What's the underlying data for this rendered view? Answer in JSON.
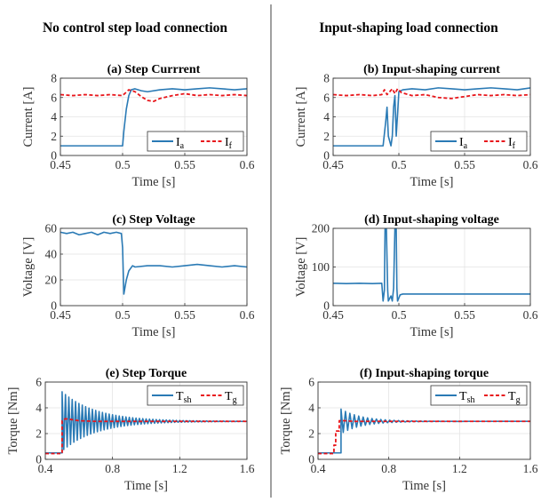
{
  "figure": {
    "left_heading": "No control step load connection",
    "right_heading": "Input-shaping load connection"
  },
  "colors": {
    "series_a": "#2a7ab5",
    "series_f": "#e8161b"
  },
  "chart_data": [
    {
      "id": "a",
      "type": "line",
      "title": "(a) Step Currrent",
      "xlabel": "Time [s]",
      "ylabel": "Current [A]",
      "xlim": [
        0.45,
        0.6
      ],
      "ylim": [
        0,
        8
      ],
      "xticks": [
        0.45,
        0.5,
        0.55,
        0.6
      ],
      "xticklabels": [
        "0.45",
        "0.5",
        "0.55",
        "0.6"
      ],
      "yticks": [
        0,
        2,
        4,
        6,
        8
      ],
      "yticklabels": [
        "0",
        "2",
        "4",
        "6",
        "8"
      ],
      "legend": {
        "position": "lower-right",
        "entries": [
          {
            "main": "I",
            "sub": "a"
          },
          {
            "main": "I",
            "sub": "f"
          }
        ]
      },
      "series": [
        {
          "key": "a",
          "style": "solid",
          "x": [
            0.45,
            0.46,
            0.47,
            0.48,
            0.49,
            0.5,
            0.501,
            0.503,
            0.505,
            0.507,
            0.51,
            0.515,
            0.52,
            0.53,
            0.54,
            0.55,
            0.56,
            0.57,
            0.58,
            0.59,
            0.6
          ],
          "y": [
            1,
            1,
            1,
            1,
            1,
            1,
            2.5,
            4.8,
            6.2,
            6.8,
            6.9,
            6.7,
            6.6,
            6.8,
            6.9,
            6.8,
            6.9,
            7,
            6.9,
            6.8,
            6.9
          ]
        },
        {
          "key": "f",
          "style": "dashed",
          "x": [
            0.45,
            0.46,
            0.47,
            0.48,
            0.49,
            0.5,
            0.505,
            0.51,
            0.515,
            0.52,
            0.525,
            0.53,
            0.54,
            0.55,
            0.56,
            0.57,
            0.58,
            0.59,
            0.6
          ],
          "y": [
            6.3,
            6.2,
            6.3,
            6.2,
            6.3,
            6.2,
            6.8,
            6.6,
            6.1,
            5.7,
            5.6,
            5.9,
            6.2,
            6.4,
            6.2,
            6.3,
            6.2,
            6.3,
            6.2
          ]
        }
      ]
    },
    {
      "id": "b",
      "type": "line",
      "title": "(b) Input-shaping current",
      "xlabel": "Time [s]",
      "ylabel": "Current [A]",
      "xlim": [
        0.45,
        0.6
      ],
      "ylim": [
        0,
        8
      ],
      "xticks": [
        0.45,
        0.5,
        0.55,
        0.6
      ],
      "xticklabels": [
        "0.45",
        "0.5",
        "0.55",
        "0.6"
      ],
      "yticks": [
        0,
        2,
        4,
        6,
        8
      ],
      "yticklabels": [
        "0",
        "2",
        "4",
        "6",
        "8"
      ],
      "legend": {
        "position": "lower-right",
        "entries": [
          {
            "main": "I",
            "sub": "a"
          },
          {
            "main": "I",
            "sub": "f"
          }
        ]
      },
      "series": [
        {
          "key": "a",
          "style": "solid",
          "x": [
            0.45,
            0.46,
            0.47,
            0.48,
            0.488,
            0.49,
            0.491,
            0.492,
            0.494,
            0.495,
            0.496,
            0.497,
            0.498,
            0.5,
            0.503,
            0.51,
            0.52,
            0.53,
            0.54,
            0.55,
            0.56,
            0.57,
            0.58,
            0.59,
            0.6
          ],
          "y": [
            1,
            1,
            1,
            1,
            1,
            3.5,
            5,
            2,
            1,
            2,
            5,
            6.2,
            2,
            6.6,
            6.8,
            6.9,
            6.8,
            7,
            6.9,
            6.8,
            6.9,
            7,
            6.9,
            6.8,
            7
          ]
        },
        {
          "key": "f",
          "style": "dashed",
          "x": [
            0.45,
            0.46,
            0.47,
            0.48,
            0.487,
            0.489,
            0.491,
            0.493,
            0.495,
            0.497,
            0.499,
            0.502,
            0.51,
            0.52,
            0.53,
            0.54,
            0.55,
            0.56,
            0.57,
            0.58,
            0.59,
            0.6
          ],
          "y": [
            6.3,
            6.2,
            6.3,
            6.2,
            6.3,
            6.8,
            6.3,
            6.6,
            6.9,
            6.4,
            6.9,
            6.5,
            6.2,
            6.3,
            6,
            5.9,
            6.1,
            6.3,
            6.2,
            6.3,
            6.2,
            6.3
          ]
        }
      ]
    },
    {
      "id": "c",
      "type": "line",
      "title": "(c)  Step Voltage",
      "xlabel": "Time [s]",
      "ylabel": "Voltage [V]",
      "xlim": [
        0.45,
        0.6
      ],
      "ylim": [
        0,
        60
      ],
      "xticks": [
        0.45,
        0.5,
        0.55,
        0.6
      ],
      "xticklabels": [
        "0.45",
        "0.5",
        "0.55",
        "0.6"
      ],
      "yticks": [
        0,
        20,
        40,
        60
      ],
      "yticklabels": [
        "0",
        "20",
        "40",
        "60"
      ],
      "legend": null,
      "series": [
        {
          "key": "a",
          "style": "solid",
          "x": [
            0.45,
            0.455,
            0.46,
            0.465,
            0.47,
            0.475,
            0.48,
            0.485,
            0.49,
            0.495,
            0.499,
            0.5,
            0.501,
            0.503,
            0.505,
            0.508,
            0.51,
            0.52,
            0.53,
            0.54,
            0.55,
            0.56,
            0.57,
            0.58,
            0.59,
            0.6
          ],
          "y": [
            57,
            56,
            57,
            55,
            56,
            57,
            55,
            57,
            56,
            57,
            56,
            45,
            9,
            20,
            27,
            31,
            30,
            31,
            31,
            30,
            31,
            32,
            31,
            30,
            31,
            30
          ]
        }
      ]
    },
    {
      "id": "d",
      "type": "line",
      "title": "(d)  Input-shaping voltage",
      "xlabel": "Time [s]",
      "ylabel": "Voltage [V]",
      "xlim": [
        0.45,
        0.6
      ],
      "ylim": [
        0,
        200
      ],
      "xticks": [
        0.45,
        0.5,
        0.55,
        0.6
      ],
      "xticklabels": [
        "0.45",
        "0.5",
        "0.55",
        "0.6"
      ],
      "yticks": [
        0,
        100,
        200
      ],
      "yticklabels": [
        "0",
        "100",
        "200"
      ],
      "legend": null,
      "series": [
        {
          "key": "a",
          "style": "solid",
          "x": [
            0.45,
            0.46,
            0.47,
            0.48,
            0.487,
            0.488,
            0.489,
            0.4895,
            0.4905,
            0.4915,
            0.492,
            0.494,
            0.495,
            0.496,
            0.497,
            0.498,
            0.4985,
            0.499,
            0.5,
            0.501,
            0.503,
            0.51,
            0.52,
            0.53,
            0.54,
            0.55,
            0.56,
            0.57,
            0.58,
            0.59,
            0.6
          ],
          "y": [
            58,
            57,
            58,
            57,
            58,
            12,
            40,
            200,
            200,
            40,
            12,
            25,
            12,
            45,
            200,
            200,
            45,
            12,
            20,
            28,
            30,
            30,
            30,
            30,
            30,
            30,
            30,
            30,
            30,
            30,
            30
          ]
        }
      ]
    },
    {
      "id": "e",
      "type": "line",
      "title": "(e) Step Torque",
      "xlabel": "Time [s]",
      "ylabel": "Torque [Nm]",
      "xlim": [
        0.4,
        1.6
      ],
      "ylim": [
        0,
        6
      ],
      "xticks": [
        0.4,
        0.8,
        1.2,
        1.6
      ],
      "xticklabels": [
        "0.4",
        "0.8",
        "1.2",
        "1.6"
      ],
      "yticks": [
        0,
        2,
        4,
        6
      ],
      "yticklabels": [
        "0",
        "2",
        "4",
        "6"
      ],
      "legend": {
        "position": "top-right",
        "entries": [
          {
            "main": "T",
            "sub": "sh"
          },
          {
            "main": "T",
            "sub": "g"
          }
        ]
      },
      "series": [
        {
          "key": "a",
          "style": "solid",
          "model": "ringing",
          "params": {
            "pre": 0.5,
            "t0": 0.5,
            "final": 2.95,
            "amp": 2.3,
            "tau": 0.2,
            "period": 0.02,
            "end": 1.6
          }
        },
        {
          "key": "f",
          "style": "dashed",
          "x": [
            0.4,
            0.5,
            0.5,
            0.52,
            0.55,
            0.6,
            0.7,
            0.9,
            1.2,
            1.6
          ],
          "y": [
            0.45,
            0.45,
            3.0,
            3.15,
            3.1,
            3.0,
            2.95,
            2.95,
            2.95,
            2.95
          ]
        }
      ]
    },
    {
      "id": "f",
      "type": "line",
      "title": "(f)  Input-shaping torque",
      "xlabel": "Time [s]",
      "ylabel": "Torque [Nm]",
      "xlim": [
        0.4,
        1.6
      ],
      "ylim": [
        0,
        6
      ],
      "xticks": [
        0.4,
        0.8,
        1.2,
        1.6
      ],
      "xticklabels": [
        "0.4",
        "0.8",
        "1.2",
        "1.6"
      ],
      "yticks": [
        0,
        2,
        4,
        6
      ],
      "yticklabels": [
        "0",
        "2",
        "4",
        "6"
      ],
      "legend": {
        "position": "top-right",
        "entries": [
          {
            "main": "T",
            "sub": "sh"
          },
          {
            "main": "T",
            "sub": "g"
          }
        ]
      },
      "series": [
        {
          "key": "a",
          "style": "solid",
          "model": "ringing",
          "params": {
            "pre": 0.5,
            "t0": 0.53,
            "final": 2.95,
            "amp": 0.95,
            "tau": 0.12,
            "period": 0.025,
            "end": 1.6
          }
        },
        {
          "key": "f",
          "style": "dashed",
          "x": [
            0.4,
            0.49,
            0.49,
            0.5,
            0.5,
            0.52,
            0.52,
            0.55,
            0.6,
            0.8,
            1.2,
            1.6
          ],
          "y": [
            0.45,
            0.45,
            1.1,
            1.1,
            2.2,
            2.2,
            3.0,
            3.0,
            2.95,
            2.95,
            2.95,
            2.95
          ]
        }
      ]
    }
  ]
}
